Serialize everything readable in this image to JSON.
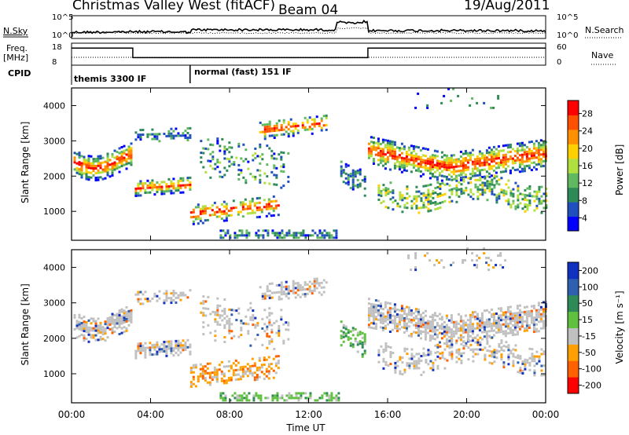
{
  "header": {
    "station": "Christmas Valley West (fitACF)",
    "beam": "Beam 04",
    "date": "19/Aug/2011"
  },
  "left_labels": {
    "nsky": "N.Sky",
    "freq_line1": "Freq.",
    "freq_line2": "[MHz]",
    "cpid": "CPID"
  },
  "right_labels": {
    "nsearch": "N.Search",
    "nave": "Nave"
  },
  "cpid_modes": [
    "themis 3300 IF",
    "normal (fast) 151 IF"
  ],
  "chart_data": [
    {
      "type": "line",
      "name": "noise",
      "yticks_left": [
        "10^5",
        "10^0"
      ],
      "yticks_right": [
        "10^5",
        "10^0"
      ]
    },
    {
      "type": "line",
      "name": "frequency",
      "yticks_left": [
        "18",
        "8"
      ],
      "yticks_right": [
        "60",
        "0"
      ],
      "segments_hours": [
        {
          "x": [
            0,
            3.1
          ],
          "freq_mhz": 16.5
        },
        {
          "x": [
            3.1,
            15.0
          ],
          "freq_mhz": 11.0
        },
        {
          "x": [
            15.0,
            24.0
          ],
          "freq_mhz": 16.5
        }
      ],
      "cpid_switch_hour": 6.0
    },
    {
      "type": "heatmap",
      "name": "power",
      "ylabel": "Slant Range [km]",
      "yticks": [
        1000,
        2000,
        3000,
        4000
      ],
      "ylim": [
        180,
        4500
      ],
      "xlim_hours": [
        0,
        24
      ],
      "colorbar_label": "Power [dB]",
      "colorbar_ticks": [
        "28",
        "24",
        "20",
        "16",
        "12",
        "8",
        "4"
      ],
      "colors": [
        "#0000ff",
        "#2050c0",
        "#2e8b57",
        "#60b860",
        "#b0e040",
        "#ffd000",
        "#ff9000",
        "#ff5000",
        "#ff0000"
      ]
    },
    {
      "type": "heatmap",
      "name": "velocity",
      "ylabel": "Slant Range [km]",
      "yticks": [
        1000,
        2000,
        3000,
        4000
      ],
      "ylim": [
        180,
        4500
      ],
      "xlim_hours": [
        0,
        24
      ],
      "xlabel": "Time UT",
      "xticks": [
        "00:00",
        "04:00",
        "08:00",
        "12:00",
        "16:00",
        "20:00",
        "00:00"
      ],
      "colorbar_label": "Velocity [m s⁻¹]",
      "colorbar_ticks": [
        "200",
        "100",
        "50",
        "15",
        "-15",
        "-50",
        "-100",
        "-200"
      ],
      "colors": [
        "#1030c0",
        "#2f60b0",
        "#2e8b57",
        "#60c040",
        "#c0c0c0",
        "#ffa000",
        "#ff6000",
        "#ff0000"
      ]
    }
  ]
}
